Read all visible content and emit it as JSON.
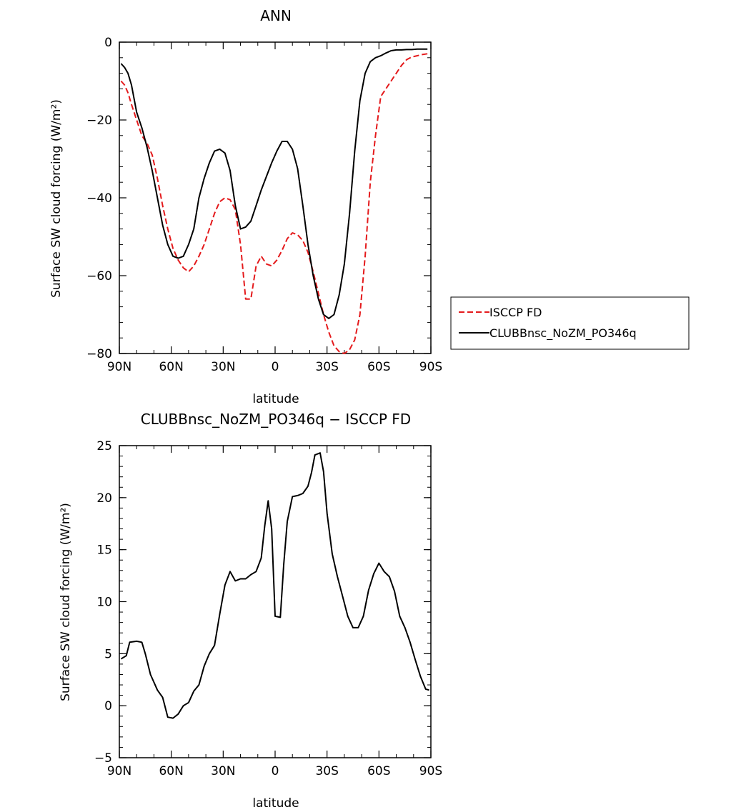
{
  "chart_data": [
    {
      "type": "line",
      "title": "ANN",
      "xlabel": "latitude",
      "ylabel": "Surface SW cloud forcing (W/m²)",
      "xlim": [
        90,
        -90
      ],
      "ylim": [
        -80,
        0
      ],
      "xticks": [
        90,
        60,
        30,
        0,
        -30,
        -60,
        -90
      ],
      "xtick_labels": [
        "90N",
        "60N",
        "30N",
        "0",
        "30S",
        "60S",
        "90S"
      ],
      "yticks": [
        0,
        -20,
        -40,
        -60,
        -80
      ],
      "ytick_labels": [
        "0",
        "−20",
        "−40",
        "−60",
        "−80"
      ],
      "grid": false,
      "legend_position": "right",
      "series": [
        {
          "name": "ISCCP FD",
          "color": "#e41a1c",
          "dash": "dashed",
          "x": [
            89,
            87,
            85,
            83,
            80,
            77,
            74,
            71,
            68,
            65,
            62,
            59,
            56,
            53,
            50,
            47,
            44,
            41,
            38,
            35,
            32,
            29,
            26,
            23,
            20,
            17,
            14,
            11,
            8,
            5,
            2,
            -1,
            -4,
            -7,
            -10,
            -13,
            -16,
            -19,
            -22,
            -25,
            -28,
            -31,
            -34,
            -37,
            -40,
            -43,
            -46,
            -49,
            -52,
            -55,
            -58,
            -61,
            -64,
            -67,
            -70,
            -73,
            -76,
            -79,
            -82,
            -85,
            -88
          ],
          "y": [
            -10,
            -11,
            -13,
            -16,
            -20,
            -24,
            -26,
            -29,
            -35,
            -42,
            -48,
            -53,
            -56,
            -58,
            -59,
            -57.5,
            -55,
            -52,
            -48,
            -44,
            -41,
            -40,
            -40.5,
            -43,
            -52,
            -66,
            -66,
            -57.5,
            -55,
            -57,
            -57.5,
            -56,
            -53.5,
            -50.5,
            -49,
            -49.5,
            -51,
            -54,
            -59,
            -64.5,
            -70,
            -74.5,
            -78,
            -79.5,
            -80,
            -79,
            -76.5,
            -70,
            -55,
            -36,
            -24,
            -14,
            -12,
            -10,
            -8,
            -6,
            -4.5,
            -3.8,
            -3.5,
            -3.2,
            -3.0
          ]
        },
        {
          "name": "CLUBBnsc_NoZM_PO346q",
          "color": "#000000",
          "dash": "solid",
          "x": [
            89,
            87,
            85,
            83,
            80,
            77,
            74,
            71,
            68,
            65,
            62,
            59,
            56,
            53,
            50,
            47,
            44,
            41,
            38,
            35,
            32,
            29,
            26,
            23,
            20,
            17,
            14,
            11,
            8,
            5,
            2,
            -1,
            -4,
            -7,
            -10,
            -13,
            -16,
            -19,
            -22,
            -25,
            -28,
            -31,
            -34,
            -37,
            -40,
            -43,
            -46,
            -49,
            -52,
            -55,
            -58,
            -61,
            -64,
            -67,
            -70,
            -73,
            -76,
            -79,
            -82,
            -85,
            -88
          ],
          "y": [
            -5.5,
            -6.5,
            -8,
            -11,
            -18,
            -22,
            -27,
            -33,
            -40,
            -47,
            -52,
            -55,
            -55.5,
            -55,
            -52,
            -48,
            -40,
            -35,
            -31,
            -28,
            -27.5,
            -28.5,
            -33,
            -42,
            -48,
            -47.5,
            -46,
            -42,
            -38,
            -34.5,
            -31,
            -28,
            -25.5,
            -25.5,
            -27.5,
            -32.5,
            -42,
            -52,
            -60,
            -66,
            -70,
            -71,
            -70,
            -65,
            -57,
            -44,
            -28,
            -15,
            -8,
            -5,
            -4,
            -3.5,
            -2.8,
            -2.2,
            -2,
            -2,
            -1.9,
            -1.9,
            -1.8,
            -1.8,
            -1.8
          ]
        }
      ]
    },
    {
      "type": "line",
      "title": "CLUBBnsc_NoZM_PO346q − ISCCP FD",
      "xlabel": "latitude",
      "ylabel": "Surface SW cloud forcing (W/m²)",
      "xlim": [
        90,
        -90
      ],
      "ylim": [
        -5,
        25
      ],
      "xticks": [
        90,
        60,
        30,
        0,
        -30,
        -60,
        -90
      ],
      "xtick_labels": [
        "90N",
        "60N",
        "30N",
        "0",
        "30S",
        "60S",
        "90S"
      ],
      "yticks": [
        25,
        20,
        15,
        10,
        5,
        0,
        -5
      ],
      "ytick_labels": [
        "25",
        "20",
        "15",
        "10",
        "5",
        "0",
        "−5"
      ],
      "grid": false,
      "series": [
        {
          "color": "#000000",
          "dash": "solid",
          "x": [
            89,
            86,
            84,
            80,
            77,
            75,
            72,
            68,
            65,
            62,
            59,
            56,
            53,
            50,
            47,
            44,
            41,
            38,
            35,
            32,
            29,
            26,
            23,
            20,
            17,
            14,
            11,
            8,
            6,
            4,
            2,
            0,
            -3,
            -5,
            -7,
            -10,
            -13,
            -16,
            -19,
            -21,
            -23,
            -26,
            -28,
            -30,
            -33,
            -36,
            -39,
            -42,
            -45,
            -48,
            -51,
            -54,
            -57,
            -60,
            -63,
            -66,
            -69,
            -72,
            -75,
            -78,
            -81,
            -84,
            -87,
            -89
          ],
          "y": [
            4.5,
            4.8,
            6.1,
            6.2,
            6.1,
            5.0,
            3.0,
            1.5,
            0.8,
            -1.1,
            -1.2,
            -0.8,
            0.0,
            0.3,
            1.4,
            2.0,
            3.8,
            5.0,
            5.8,
            8.8,
            11.6,
            12.9,
            12.0,
            12.2,
            12.2,
            12.6,
            12.9,
            14.2,
            17.3,
            19.7,
            17.0,
            8.6,
            8.5,
            13.6,
            17.7,
            20.1,
            20.2,
            20.4,
            21.1,
            22.4,
            24.1,
            24.3,
            22.5,
            18.5,
            14.6,
            12.4,
            10.5,
            8.6,
            7.5,
            7.5,
            8.6,
            11.1,
            12.7,
            13.7,
            12.9,
            12.4,
            11.0,
            8.6,
            7.5,
            6.1,
            4.4,
            2.8,
            1.6,
            1.5
          ]
        }
      ]
    }
  ],
  "legend": {
    "items": [
      {
        "label": "ISCCP FD"
      },
      {
        "label": "CLUBBnsc_NoZM_PO346q"
      }
    ]
  }
}
